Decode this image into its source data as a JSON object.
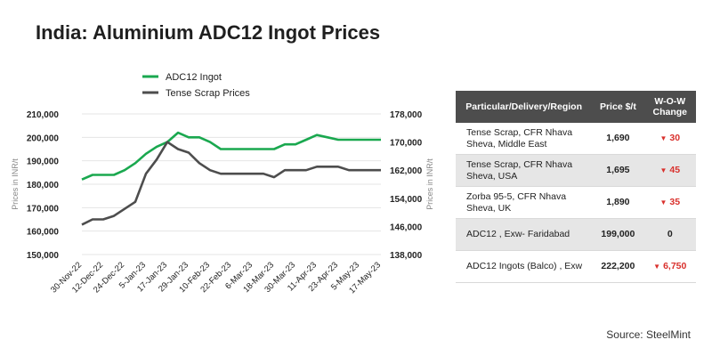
{
  "title": "India: Aluminium ADC12 Ingot Prices",
  "chart_data": {
    "type": "line",
    "x": [
      "30-Nov-22",
      "12-Dec-22",
      "24-Dec-22",
      "5-Jan-23",
      "17-Jan-23",
      "29-Jan-23",
      "10-Feb-23",
      "22-Feb-23",
      "6-Mar-23",
      "18-Mar-23",
      "30-Mar-23",
      "11-Apr-23",
      "23-Apr-23",
      "5-May-23",
      "17-May-23"
    ],
    "series": [
      {
        "name": "ADC12 Ingot",
        "color": "#1aa84f",
        "axis": "left",
        "x": [
          0,
          0.5,
          1,
          1.5,
          2,
          2.5,
          3,
          3.5,
          4,
          4.5,
          5,
          5.5,
          6,
          6.5,
          7,
          7.5,
          8,
          8.5,
          9,
          9.5,
          10,
          10.5,
          11,
          11.5,
          12,
          12.5,
          13,
          13.5,
          14
        ],
        "values": [
          182000,
          184000,
          184000,
          184000,
          186000,
          189000,
          193000,
          196000,
          198000,
          202000,
          200000,
          200000,
          198000,
          195000,
          195000,
          195000,
          195000,
          195000,
          195000,
          197000,
          197000,
          199000,
          201000,
          200000,
          199000,
          199000,
          199000,
          199000,
          199000
        ]
      },
      {
        "name": "Tense Scrap Prices",
        "color": "#4d4d4d",
        "axis": "right",
        "x": [
          0,
          0.5,
          1,
          1.5,
          2,
          2.5,
          3,
          3.5,
          4,
          4.5,
          5,
          5.5,
          6,
          6.5,
          7,
          7.5,
          8,
          8.5,
          9,
          9.5,
          10,
          10.5,
          11,
          11.5,
          12,
          12.5,
          13,
          13.5,
          14
        ],
        "values": [
          146500,
          148000,
          148000,
          149000,
          151000,
          153000,
          161000,
          165000,
          170000,
          168000,
          167000,
          164000,
          162000,
          161000,
          161000,
          161000,
          161000,
          161000,
          160000,
          162000,
          162000,
          162000,
          163000,
          163000,
          163000,
          162000,
          162000,
          162000,
          162000
        ]
      }
    ],
    "y_left": {
      "label": "Prices in INR/t",
      "ticks": [
        150000,
        160000,
        170000,
        180000,
        190000,
        200000,
        210000
      ],
      "tick_labels": [
        "150,000",
        "160,000",
        "170,000",
        "180,000",
        "190,000",
        "200,000",
        "210,000"
      ],
      "ylim": [
        150000,
        210000
      ]
    },
    "y_right": {
      "label": "Prices in INR/t",
      "ticks": [
        138000,
        146000,
        154000,
        162000,
        170000,
        178000
      ],
      "tick_labels": [
        "138,000",
        "146,000",
        "154,000",
        "162,000",
        "170,000",
        "178,000"
      ],
      "ylim": [
        138000,
        178000
      ]
    },
    "grid": "horizontal",
    "legend_position": "top-left"
  },
  "table": {
    "headers": [
      "Particular/Delivery/Region",
      "Price $/t",
      "W-O-W Change"
    ],
    "rows": [
      {
        "particular": "Tense Scrap, CFR Nhava Sheva, Middle East",
        "price": "1,690",
        "change": "30",
        "direction": "down"
      },
      {
        "particular": "Tense Scrap, CFR Nhava Sheva, USA",
        "price": "1,695",
        "change": "45",
        "direction": "down"
      },
      {
        "particular": "Zorba 95-5, CFR Nhava Sheva, UK",
        "price": "1,890",
        "change": "35",
        "direction": "down"
      },
      {
        "particular": "ADC12 , Exw- Faridabad",
        "price": "199,000",
        "change": "0",
        "direction": "none"
      },
      {
        "particular": "ADC12 Ingots (Balco) , Exw",
        "price": "222,200",
        "change": "6,750",
        "direction": "down"
      }
    ]
  },
  "source": "Source: SteelMint"
}
